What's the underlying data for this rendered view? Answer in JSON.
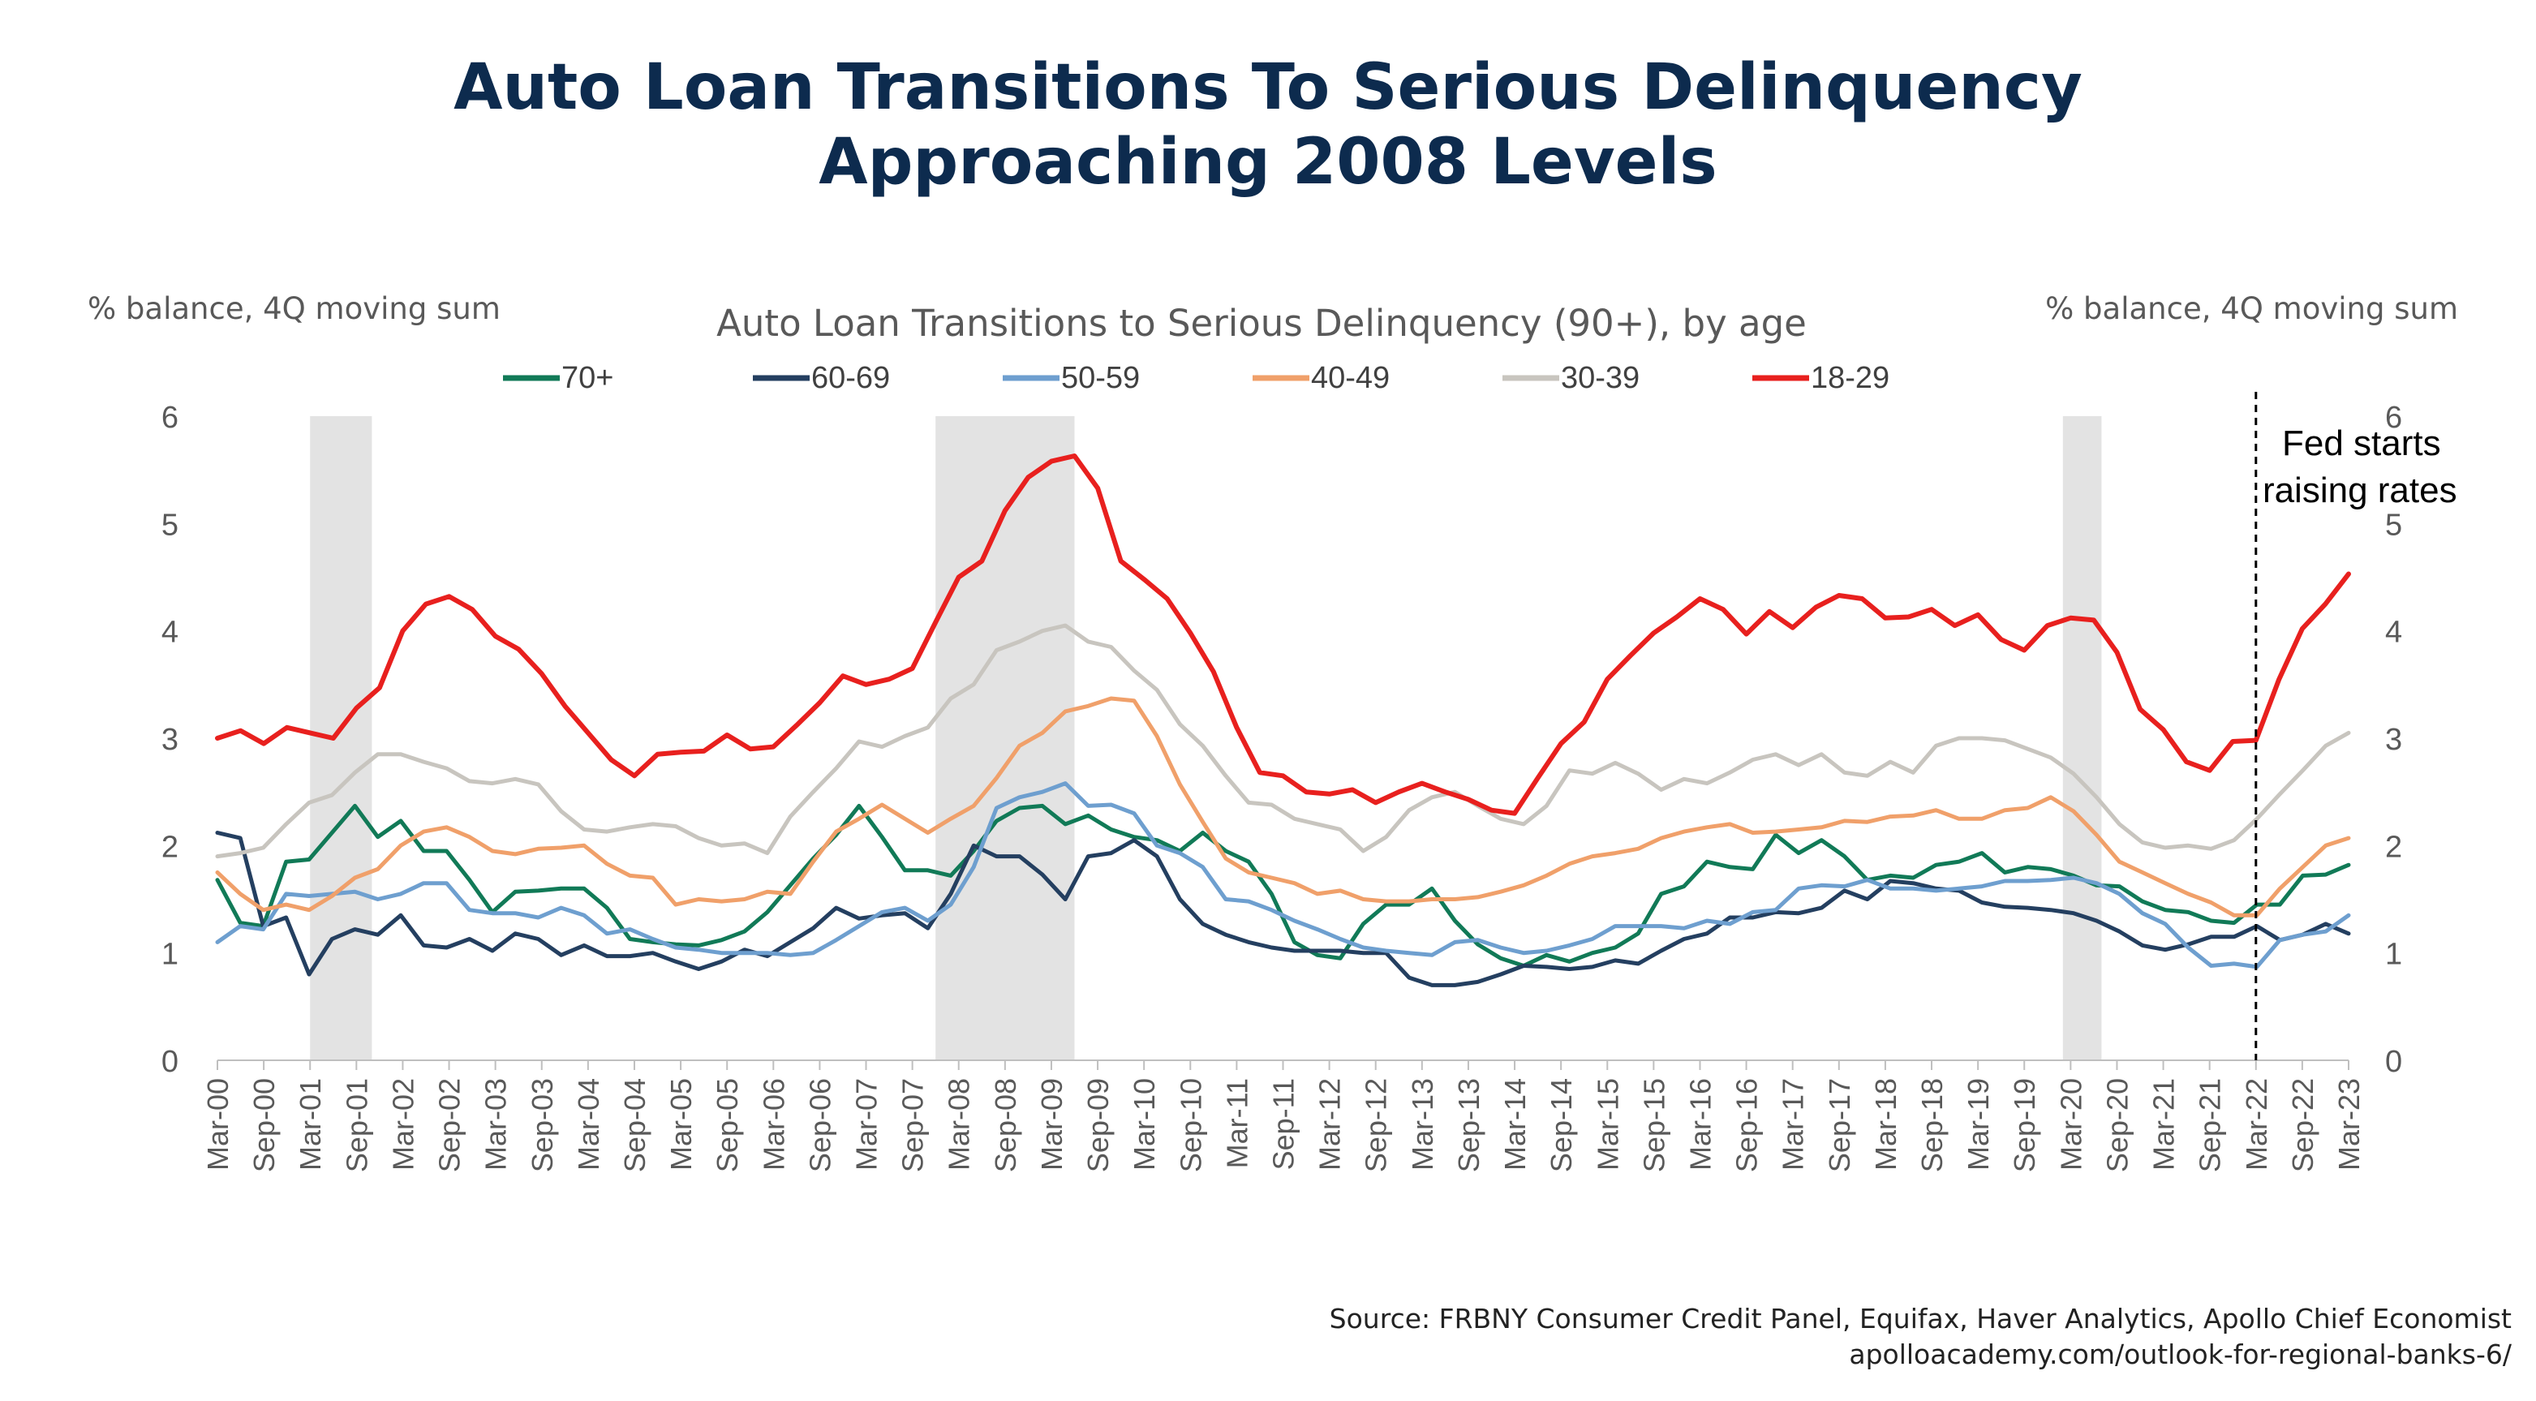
{
  "header": {
    "title_line1": "Auto Loan Transitions To Serious Delinquency",
    "title_line2": "Approaching 2008 Levels"
  },
  "footer": {
    "source": "Source: FRBNY Consumer Credit Panel, Equifax, Haver Analytics, Apollo Chief Economist",
    "url": "apolloacademy.com/outlook-for-regional-banks-6/"
  },
  "chart_data": {
    "type": "line",
    "title": "Auto Loan Transitions to Serious Delinquency (90+), by age",
    "ylabel_left": "% balance, 4Q moving sum",
    "ylabel_right": "% balance, 4Q moving sum",
    "ylim": [
      0,
      6
    ],
    "yticks": [
      0,
      1,
      2,
      3,
      4,
      5,
      6
    ],
    "grid": false,
    "legend_position": "top",
    "x_tick_labels": [
      "Mar-00",
      "Sep-00",
      "Mar-01",
      "Sep-01",
      "Mar-02",
      "Sep-02",
      "Mar-03",
      "Sep-03",
      "Mar-04",
      "Sep-04",
      "Mar-05",
      "Sep-05",
      "Mar-06",
      "Sep-06",
      "Mar-07",
      "Sep-07",
      "Mar-08",
      "Sep-08",
      "Mar-09",
      "Sep-09",
      "Mar-10",
      "Sep-10",
      "Mar-11",
      "Sep-11",
      "Mar-12",
      "Sep-12",
      "Mar-13",
      "Sep-13",
      "Mar-14",
      "Sep-14",
      "Mar-15",
      "Sep-15",
      "Mar-16",
      "Sep-16",
      "Mar-17",
      "Sep-17",
      "Mar-18",
      "Sep-18",
      "Mar-19",
      "Sep-19",
      "Mar-20",
      "Sep-20",
      "Mar-21",
      "Sep-21",
      "Mar-22",
      "Sep-22",
      "Mar-23"
    ],
    "recessions": [
      {
        "start": "Mar-01",
        "end": "Nov-01"
      },
      {
        "start": "Dec-07",
        "end": "Jun-09"
      },
      {
        "start": "Feb-20",
        "end": "Jul-20"
      }
    ],
    "annotation": {
      "date": "Mar-22",
      "line1": "Fed starts",
      "line2": "raising rates",
      "line_style": "dashed"
    },
    "series": [
      {
        "name": "70+",
        "color": "#117a57",
        "values": [
          1.68,
          1.28,
          1.25,
          1.85,
          1.87,
          2.12,
          2.37,
          2.08,
          2.23,
          1.95,
          1.95,
          1.68,
          1.38,
          1.57,
          1.58,
          1.6,
          1.6,
          1.42,
          1.13,
          1.1,
          1.08,
          1.07,
          1.12,
          1.2,
          1.38,
          1.63,
          1.88,
          2.1,
          2.37,
          2.08,
          1.77,
          1.77,
          1.72,
          1.95,
          2.23,
          2.35,
          2.37,
          2.2,
          2.28,
          2.15,
          2.08,
          2.05,
          1.95,
          2.12,
          1.95,
          1.85,
          1.55,
          1.1,
          0.98,
          0.95,
          1.27,
          1.45,
          1.45,
          1.6,
          1.3,
          1.08,
          0.95,
          0.88,
          0.98,
          0.92,
          1.0,
          1.05,
          1.18,
          1.55,
          1.62,
          1.85,
          1.8,
          1.78,
          2.1,
          1.93,
          2.05,
          1.9,
          1.68,
          1.72,
          1.7,
          1.82,
          1.85,
          1.93,
          1.75,
          1.8,
          1.78,
          1.72,
          1.63,
          1.62,
          1.48,
          1.4,
          1.38,
          1.3,
          1.28,
          1.45,
          1.45,
          1.72,
          1.73,
          1.82
        ]
      },
      {
        "name": "60-69",
        "color": "#243f60",
        "values": [
          2.12,
          2.07,
          1.25,
          1.33,
          0.8,
          1.13,
          1.22,
          1.17,
          1.35,
          1.07,
          1.05,
          1.13,
          1.02,
          1.18,
          1.13,
          0.98,
          1.07,
          0.97,
          0.97,
          1.0,
          0.92,
          0.85,
          0.92,
          1.03,
          0.97,
          1.1,
          1.23,
          1.42,
          1.32,
          1.35,
          1.37,
          1.23,
          1.55,
          2.0,
          1.9,
          1.9,
          1.73,
          1.5,
          1.9,
          1.93,
          2.05,
          1.9,
          1.5,
          1.27,
          1.17,
          1.1,
          1.05,
          1.02,
          1.02,
          1.02,
          1.0,
          1.0,
          0.77,
          0.7,
          0.7,
          0.73,
          0.8,
          0.88,
          0.87,
          0.85,
          0.87,
          0.93,
          0.9,
          1.02,
          1.13,
          1.18,
          1.33,
          1.33,
          1.38,
          1.37,
          1.42,
          1.58,
          1.5,
          1.67,
          1.65,
          1.6,
          1.58,
          1.47,
          1.43,
          1.42,
          1.4,
          1.37,
          1.3,
          1.2,
          1.07,
          1.03,
          1.08,
          1.15,
          1.15,
          1.25,
          1.12,
          1.17,
          1.27,
          1.18
        ]
      },
      {
        "name": "50-59",
        "color": "#6e9fcf",
        "values": [
          1.1,
          1.25,
          1.22,
          1.55,
          1.53,
          1.55,
          1.57,
          1.5,
          1.55,
          1.65,
          1.65,
          1.4,
          1.37,
          1.37,
          1.33,
          1.42,
          1.35,
          1.18,
          1.22,
          1.13,
          1.05,
          1.03,
          1.0,
          1.0,
          1.0,
          0.98,
          1.0,
          1.12,
          1.25,
          1.38,
          1.42,
          1.3,
          1.45,
          1.8,
          2.35,
          2.45,
          2.5,
          2.58,
          2.37,
          2.38,
          2.3,
          2.0,
          1.93,
          1.8,
          1.5,
          1.48,
          1.4,
          1.3,
          1.22,
          1.13,
          1.05,
          1.02,
          1.0,
          0.98,
          1.1,
          1.12,
          1.05,
          1.0,
          1.02,
          1.07,
          1.13,
          1.25,
          1.25,
          1.25,
          1.23,
          1.3,
          1.27,
          1.38,
          1.4,
          1.6,
          1.63,
          1.62,
          1.68,
          1.6,
          1.6,
          1.58,
          1.6,
          1.62,
          1.67,
          1.67,
          1.68,
          1.7,
          1.65,
          1.55,
          1.37,
          1.27,
          1.05,
          0.88,
          0.9,
          0.87,
          1.12,
          1.17,
          1.2,
          1.35
        ]
      },
      {
        "name": "40-49",
        "color": "#f0a06a",
        "values": [
          1.75,
          1.55,
          1.4,
          1.45,
          1.4,
          1.53,
          1.7,
          1.78,
          2.0,
          2.13,
          2.17,
          2.08,
          1.95,
          1.92,
          1.97,
          1.98,
          2.0,
          1.83,
          1.72,
          1.7,
          1.45,
          1.5,
          1.48,
          1.5,
          1.57,
          1.55,
          1.85,
          2.13,
          2.25,
          2.38,
          2.25,
          2.12,
          2.25,
          2.37,
          2.63,
          2.93,
          3.05,
          3.25,
          3.3,
          3.37,
          3.35,
          3.02,
          2.57,
          2.22,
          1.88,
          1.75,
          1.7,
          1.65,
          1.55,
          1.58,
          1.5,
          1.48,
          1.48,
          1.5,
          1.5,
          1.52,
          1.57,
          1.63,
          1.72,
          1.83,
          1.9,
          1.93,
          1.97,
          2.07,
          2.13,
          2.17,
          2.2,
          2.12,
          2.13,
          2.15,
          2.17,
          2.23,
          2.22,
          2.27,
          2.28,
          2.33,
          2.25,
          2.25,
          2.33,
          2.35,
          2.45,
          2.32,
          2.1,
          1.85,
          1.75,
          1.65,
          1.55,
          1.47,
          1.35,
          1.35,
          1.6,
          1.8,
          2.0,
          2.07
        ]
      },
      {
        "name": "30-39",
        "color": "#c8c5bf",
        "values": [
          1.9,
          1.93,
          1.98,
          2.2,
          2.4,
          2.47,
          2.68,
          2.85,
          2.85,
          2.78,
          2.72,
          2.6,
          2.58,
          2.62,
          2.57,
          2.32,
          2.15,
          2.13,
          2.17,
          2.2,
          2.18,
          2.07,
          2.0,
          2.02,
          1.93,
          2.27,
          2.5,
          2.72,
          2.97,
          2.92,
          3.02,
          3.1,
          3.37,
          3.5,
          3.82,
          3.9,
          4.0,
          4.05,
          3.9,
          3.85,
          3.63,
          3.45,
          3.13,
          2.93,
          2.65,
          2.4,
          2.38,
          2.25,
          2.2,
          2.15,
          1.95,
          2.08,
          2.33,
          2.45,
          2.5,
          2.37,
          2.25,
          2.2,
          2.37,
          2.7,
          2.67,
          2.77,
          2.67,
          2.52,
          2.62,
          2.58,
          2.68,
          2.8,
          2.85,
          2.75,
          2.85,
          2.68,
          2.65,
          2.78,
          2.68,
          2.93,
          3.0,
          3.0,
          2.98,
          2.9,
          2.82,
          2.67,
          2.45,
          2.2,
          2.03,
          1.98,
          2.0,
          1.97,
          2.05,
          2.25,
          2.48,
          2.7,
          2.93,
          3.05
        ]
      },
      {
        "name": "18-29",
        "color": "#e8201e",
        "values": [
          3.0,
          3.07,
          2.95,
          3.1,
          3.05,
          3.0,
          3.28,
          3.47,
          4.0,
          4.25,
          4.32,
          4.2,
          3.95,
          3.83,
          3.6,
          3.3,
          3.05,
          2.8,
          2.65,
          2.85,
          2.87,
          2.88,
          3.03,
          2.9,
          2.92,
          3.12,
          3.33,
          3.58,
          3.5,
          3.55,
          3.65,
          4.08,
          4.5,
          4.65,
          5.12,
          5.43,
          5.58,
          5.63,
          5.33,
          4.65,
          4.48,
          4.3,
          3.98,
          3.62,
          3.1,
          2.68,
          2.65,
          2.5,
          2.48,
          2.52,
          2.4,
          2.5,
          2.58,
          2.5,
          2.43,
          2.33,
          2.3,
          2.63,
          2.95,
          3.15,
          3.55,
          3.77,
          3.98,
          4.13,
          4.3,
          4.2,
          3.97,
          4.18,
          4.03,
          4.22,
          4.33,
          4.3,
          4.12,
          4.13,
          4.2,
          4.05,
          4.15,
          3.92,
          3.82,
          4.05,
          4.12,
          4.1,
          3.8,
          3.27,
          3.08,
          2.78,
          2.7,
          2.97,
          2.98,
          3.55,
          4.02,
          4.25,
          4.53
        ]
      }
    ]
  }
}
